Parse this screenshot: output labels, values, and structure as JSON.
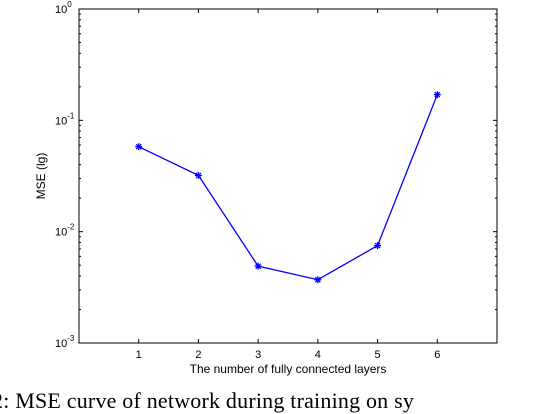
{
  "chart_data": {
    "type": "line",
    "xlabel": "The number of fully connected layers",
    "ylabel": "MSE (lg)",
    "xlim": [
      0,
      7
    ],
    "ylim": [
      0.001,
      1
    ],
    "yscale": "log",
    "xticks": [
      1,
      2,
      3,
      4,
      5,
      6
    ],
    "yticks": [
      {
        "value": 1,
        "base": "10",
        "exp": "0"
      },
      {
        "value": 0.1,
        "base": "10",
        "exp": "-1"
      },
      {
        "value": 0.01,
        "base": "10",
        "exp": "-2"
      },
      {
        "value": 0.001,
        "base": "10",
        "exp": "-3"
      }
    ],
    "series": [
      {
        "x": [
          1,
          2,
          3,
          4,
          5,
          6
        ],
        "values": [
          0.058,
          0.032,
          0.0049,
          0.0037,
          0.0075,
          0.17
        ],
        "color": "#0000ff",
        "marker": "asterisk"
      }
    ],
    "grid": false
  },
  "caption": "2: MSE curve of network during training on sy"
}
